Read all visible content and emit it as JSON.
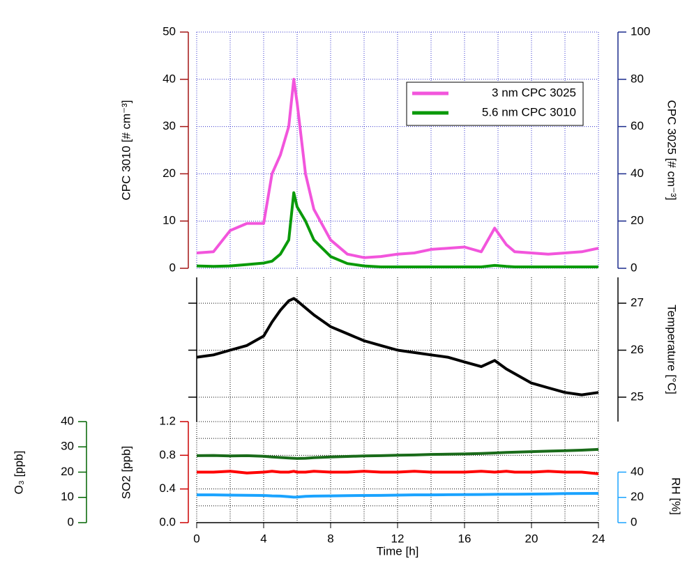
{
  "chart_data": [
    {
      "type": "line",
      "legend": "upper right",
      "ylabel": "CPC 3010 [# cm⁻³]",
      "ycolor": "#a31515",
      "y2label": "CPC 3025 [# cm⁻³]",
      "y2color": "#1a2a8c",
      "grid": true,
      "gridcolor": "#3333cc",
      "x": [
        0,
        1,
        2,
        3,
        4,
        4.5,
        5,
        5.5,
        5.8,
        6,
        6.5,
        7,
        8,
        9,
        10,
        11,
        12,
        13,
        14,
        15,
        16,
        17,
        17.8,
        18.5,
        19,
        20,
        21,
        22,
        23,
        24
      ],
      "xlim": [
        0,
        24
      ],
      "xticks": [
        0,
        2,
        4,
        6,
        8,
        10,
        12,
        14,
        16,
        18,
        20,
        22,
        24
      ],
      "ylim": [
        0,
        50
      ],
      "yticks": [
        0,
        10,
        20,
        30,
        40,
        50
      ],
      "y2lim": [
        0,
        100
      ],
      "y2ticks": [
        0,
        20,
        40,
        60,
        80,
        100
      ],
      "series": [
        {
          "name": "3 nm CPC 3025",
          "color": "#f255dc",
          "axis": "y2",
          "values": [
            6.5,
            7,
            16,
            19,
            19,
            40,
            48,
            60,
            80,
            70,
            40,
            25,
            12,
            6,
            4.5,
            5,
            6,
            6.5,
            8,
            8.5,
            9,
            7,
            17,
            10,
            7,
            6.5,
            6,
            6.5,
            7,
            8.5
          ]
        },
        {
          "name": "5.6 nm CPC 3010",
          "color": "#0a9a0a",
          "values": [
            0.5,
            0.4,
            0.5,
            0.8,
            1.1,
            1.5,
            3,
            6,
            16,
            13,
            10,
            6,
            2.5,
            1,
            0.5,
            0.3,
            0.3,
            0.3,
            0.3,
            0.3,
            0.3,
            0.3,
            0.6,
            0.4,
            0.3,
            0.3,
            0.3,
            0.3,
            0.3,
            0.3
          ]
        }
      ]
    },
    {
      "type": "line",
      "y2label": "Temperature [°C]",
      "y2color": "#000000",
      "grid": true,
      "gridcolor": "#000000",
      "x": [
        0,
        1,
        2,
        3,
        4,
        4.5,
        5,
        5.5,
        5.8,
        6,
        6.5,
        7,
        8,
        9,
        10,
        11,
        12,
        13,
        14,
        15,
        16,
        17,
        17.8,
        18.5,
        19,
        20,
        21,
        22,
        23,
        24
      ],
      "xlim": [
        0,
        24
      ],
      "xticks": [
        0,
        2,
        4,
        6,
        8,
        10,
        12,
        14,
        16,
        18,
        20,
        22,
        24
      ],
      "y2lim": [
        24.48,
        27.55
      ],
      "y2ticks": [
        25,
        26,
        27
      ],
      "series": [
        {
          "name": "Temperature",
          "color": "#000000",
          "axis": "y2",
          "values": [
            25.85,
            25.9,
            26.0,
            26.1,
            26.3,
            26.6,
            26.85,
            27.05,
            27.1,
            27.05,
            26.9,
            26.75,
            26.5,
            26.35,
            26.2,
            26.1,
            26.0,
            25.95,
            25.9,
            25.85,
            25.75,
            25.65,
            25.78,
            25.6,
            25.5,
            25.3,
            25.2,
            25.1,
            25.05,
            25.1
          ]
        }
      ]
    },
    {
      "type": "line",
      "xlabel": "Time [h]",
      "ylabel": "SO2 [ppb]",
      "ycolor": "#cc0000",
      "y3label": "O₃ [ppb]",
      "y3color": "#006400",
      "y2label": "RH [%]",
      "y2color": "#1aa3ff",
      "grid": true,
      "gridcolor": "#000000",
      "x": [
        0,
        1,
        2,
        3,
        4,
        4.5,
        5,
        5.5,
        5.8,
        6,
        6.5,
        7,
        8,
        9,
        10,
        11,
        12,
        13,
        14,
        15,
        16,
        17,
        17.8,
        18.5,
        19,
        20,
        21,
        22,
        23,
        24
      ],
      "xlim": [
        0,
        24
      ],
      "xticks": [
        0,
        2,
        4,
        6,
        8,
        10,
        12,
        14,
        16,
        18,
        20,
        22,
        24
      ],
      "xlabels": [
        0,
        4,
        8,
        12,
        16,
        20,
        24
      ],
      "ylim": [
        0,
        1.2
      ],
      "yticks": [
        {
          "value": 0,
          "label": "0.0"
        },
        {
          "value": 0.4,
          "label": "0.4"
        },
        {
          "value": 0.8,
          "label": "0.8"
        },
        {
          "value": 1.2,
          "label": "1.2"
        }
      ],
      "yminorticks": [
        0.2,
        0.6,
        1.0
      ],
      "y3lim": [
        0,
        40
      ],
      "y3ticks": [
        0,
        10,
        20,
        30,
        40
      ],
      "y2lim": [
        0,
        80
      ],
      "y2ticks": [
        0,
        20,
        40
      ],
      "series": [
        {
          "name": "O3",
          "color": "#1a6b1a",
          "axis": "y3",
          "values": [
            26.5,
            26.6,
            26.4,
            26.5,
            26.3,
            26.0,
            25.8,
            25.6,
            25.5,
            25.4,
            25.5,
            25.7,
            26.0,
            26.2,
            26.4,
            26.5,
            26.7,
            26.8,
            27.0,
            27.1,
            27.2,
            27.4,
            27.6,
            27.8,
            27.9,
            28.1,
            28.3,
            28.5,
            28.7,
            29.0
          ]
        },
        {
          "name": "SO2",
          "color": "#ff0000",
          "values": [
            0.6,
            0.6,
            0.61,
            0.59,
            0.6,
            0.61,
            0.6,
            0.6,
            0.61,
            0.6,
            0.6,
            0.61,
            0.6,
            0.6,
            0.61,
            0.6,
            0.6,
            0.61,
            0.6,
            0.6,
            0.6,
            0.61,
            0.6,
            0.61,
            0.6,
            0.6,
            0.61,
            0.6,
            0.6,
            0.58
          ]
        },
        {
          "name": "RH",
          "color": "#1aa3ff",
          "axis": "y2",
          "values": [
            22,
            22,
            21.8,
            21.7,
            21.5,
            21.2,
            21,
            20.5,
            20.2,
            20.3,
            20.8,
            21,
            21.2,
            21.4,
            21.5,
            21.6,
            21.8,
            22,
            22,
            22.1,
            22.2,
            22.3,
            22.4,
            22.5,
            22.5,
            22.6,
            22.8,
            23,
            23.1,
            23.2
          ]
        }
      ]
    }
  ]
}
